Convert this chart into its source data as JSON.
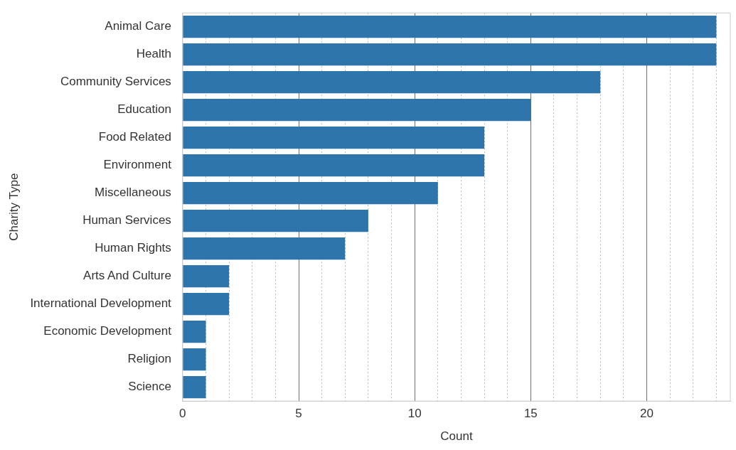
{
  "chart_data": {
    "type": "bar",
    "orientation": "horizontal",
    "xlabel": "Count",
    "ylabel": "Charity Type",
    "categories": [
      "Animal Care",
      "Health",
      "Community Services",
      "Education",
      "Food Related",
      "Environment",
      "Miscellaneous",
      "Human Services",
      "Human Rights",
      "Arts And Culture",
      "International Development",
      "Economic Development",
      "Religion",
      "Science"
    ],
    "values": [
      23,
      23,
      18,
      15,
      13,
      13,
      11,
      8,
      7,
      2,
      2,
      1,
      1,
      1
    ],
    "color": "#2e75ab",
    "xlim": [
      0,
      23.6
    ],
    "xticks": [
      0,
      {
        "value": 1,
        "label": null
      },
      {
        "value": 2,
        "label": null
      },
      {
        "value": 3,
        "label": null
      },
      {
        "value": 4,
        "label": null
      },
      5,
      {
        "value": 6,
        "label": null
      },
      {
        "value": 7,
        "label": null
      },
      {
        "value": 8,
        "label": null
      },
      {
        "value": 9,
        "label": null
      },
      10,
      {
        "value": 11,
        "label": null
      },
      {
        "value": 12,
        "label": null
      },
      {
        "value": 13,
        "label": null
      },
      {
        "value": 14,
        "label": null
      },
      15,
      {
        "value": 16,
        "label": null
      },
      {
        "value": 17,
        "label": null
      },
      {
        "value": 18,
        "label": null
      },
      {
        "value": 19,
        "label": null
      },
      20,
      {
        "value": 21,
        "label": null
      },
      {
        "value": 22,
        "label": null
      },
      {
        "value": 23,
        "label": null
      }
    ],
    "grid": "x",
    "legend": false
  }
}
